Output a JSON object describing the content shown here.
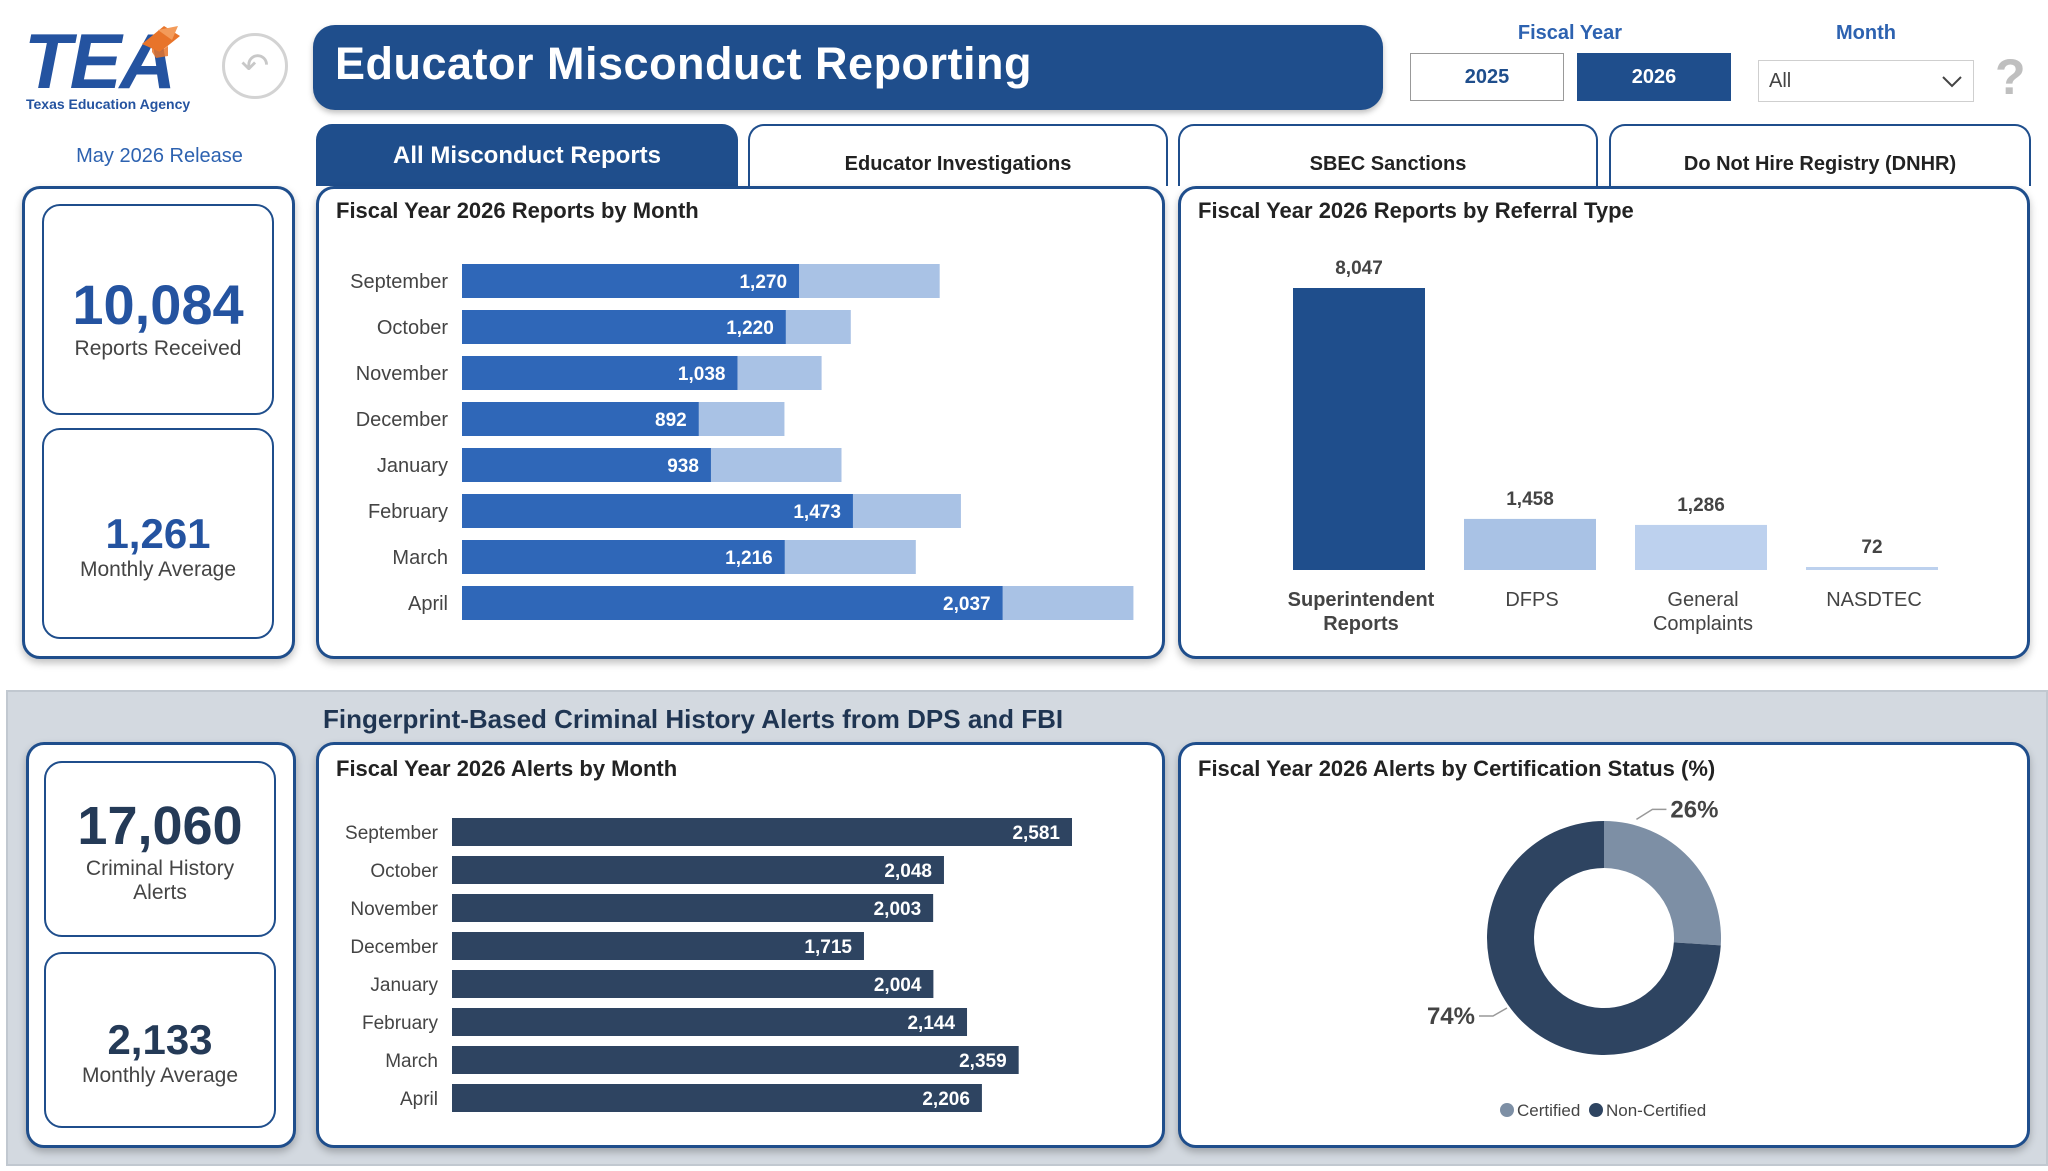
{
  "header": {
    "logo_text": "TEA",
    "logo_subtitle": "Texas Education Agency",
    "release": "May 2026 Release",
    "title": "Educator Misconduct Reporting"
  },
  "filters": {
    "fiscal_year_label": "Fiscal Year",
    "years": [
      "2025",
      "2026"
    ],
    "selected_year": "2026",
    "month_label": "Month",
    "month_value": "All"
  },
  "tabs": [
    {
      "label": "All Misconduct Reports",
      "active": true
    },
    {
      "label": "Educator Investigations",
      "active": false
    },
    {
      "label": "SBEC Sanctions",
      "active": false
    },
    {
      "label": "Do Not Hire Registry (DNHR)",
      "active": false
    }
  ],
  "reports": {
    "total_value": "10,084",
    "total_label": "Reports Received",
    "avg_value": "1,261",
    "avg_label": "Monthly Average"
  },
  "alerts": {
    "section_title": "Fingerprint-Based Criminal History Alerts from DPS and FBI",
    "total_value": "17,060",
    "total_label": "Criminal History Alerts",
    "avg_value": "2,133",
    "avg_label": "Monthly Average"
  },
  "colors": {
    "brand": "#1f4e8c",
    "bar_primary": "#2f67b8",
    "bar_prior": "#a9c2e5",
    "alert_bar": "#2e4461",
    "donut_certified": "#7d8fa5",
    "donut_non_certified": "#2e4461"
  },
  "chart_data": [
    {
      "type": "bar",
      "title": "Fiscal Year 2026 Reports by Month",
      "orientation": "horizontal",
      "categories": [
        "September",
        "October",
        "November",
        "December",
        "January",
        "February",
        "March",
        "April"
      ],
      "series": [
        {
          "values": [
            1270,
            1220,
            1038,
            892,
            938,
            1473,
            1216,
            2037
          ],
          "labels": [
            "1,270",
            "1,220",
            "1,038",
            "892",
            "938",
            "1,473",
            "1,216",
            "2,037"
          ]
        },
        {
          "values": [
            1800,
            1465,
            1355,
            1215,
            1430,
            1880,
            1710,
            2530
          ]
        }
      ],
      "xlim": [
        0,
        2600
      ]
    },
    {
      "type": "bar",
      "title": "Fiscal Year 2026 Reports by Referral Type",
      "categories": [
        "Superintendent Reports",
        "DFPS",
        "General Complaints",
        "NASDTEC"
      ],
      "values": [
        8047,
        1458,
        1286,
        72
      ],
      "labels": [
        "8,047",
        "1,458",
        "1,286",
        "72"
      ],
      "ylim": [
        0,
        8047
      ]
    },
    {
      "type": "bar",
      "title": "Fiscal Year 2026 Alerts by Month",
      "orientation": "horizontal",
      "categories": [
        "September",
        "October",
        "November",
        "December",
        "January",
        "February",
        "March",
        "April"
      ],
      "values": [
        2581,
        2048,
        2003,
        1715,
        2004,
        2144,
        2359,
        2206
      ],
      "labels": [
        "2,581",
        "2,048",
        "2,003",
        "1,715",
        "2,004",
        "2,144",
        "2,359",
        "2,206"
      ],
      "xlim": [
        0,
        2581
      ]
    },
    {
      "type": "pie",
      "title": "Fiscal Year 2026 Alerts by Certification Status (%)",
      "categories": [
        "Certified",
        "Non-Certified"
      ],
      "values": [
        26,
        74
      ],
      "labels": [
        "26%",
        "74%"
      ],
      "legend": "bottom"
    }
  ]
}
